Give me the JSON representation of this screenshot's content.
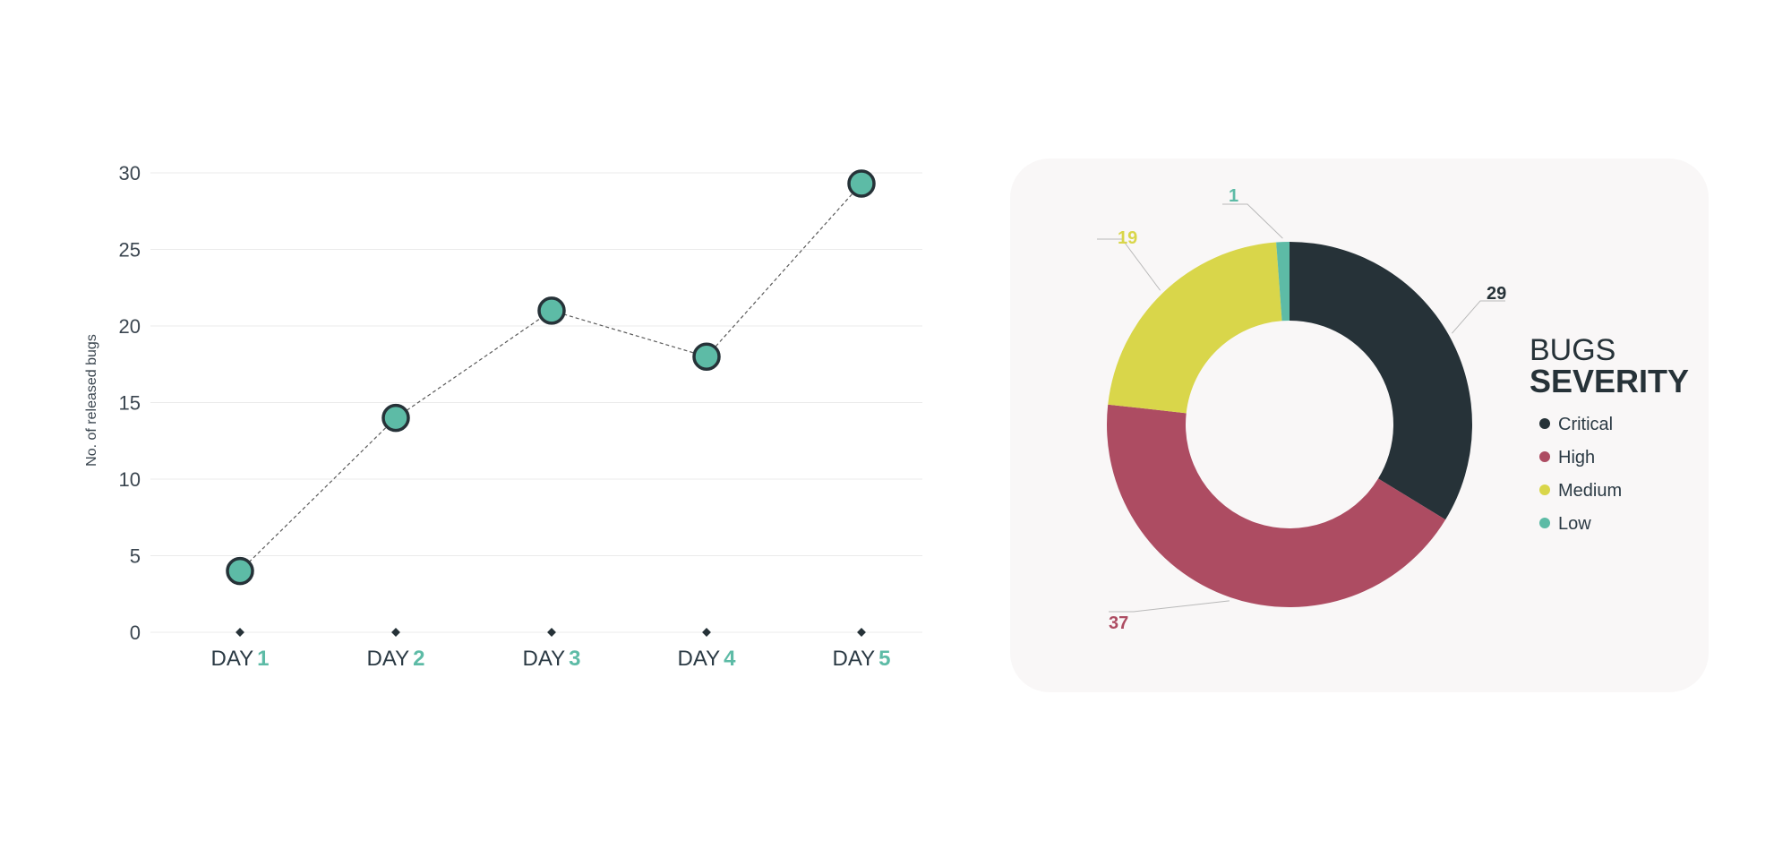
{
  "colors": {
    "accent": "#5dbba6",
    "dark": "#263238",
    "critical": "#263238",
    "high": "#ad4c62",
    "medium": "#d9d64a",
    "low": "#5dbba6",
    "panel": "#f9f7f7",
    "grid": "#ebebeb"
  },
  "chart_data": [
    {
      "type": "line",
      "x": [
        "DAY 1",
        "DAY 2",
        "DAY 3",
        "DAY 4",
        "DAY 5"
      ],
      "x_prefix": [
        "DAY",
        "DAY",
        "DAY",
        "DAY",
        "DAY"
      ],
      "x_number": [
        "1",
        "2",
        "3",
        "4",
        "5"
      ],
      "values": [
        4,
        14,
        21,
        18,
        29.3
      ],
      "ylabel": "No. of released bugs",
      "ylim": [
        0,
        30
      ],
      "yticks": [
        "0",
        "5",
        "10",
        "15",
        "20",
        "25",
        "30"
      ],
      "grid": true
    },
    {
      "type": "pie",
      "title_line1": "BUGS",
      "title_line2": "SEVERITY",
      "legend_position": "right",
      "slices": [
        {
          "name": "Critical",
          "value": 29,
          "label": "29",
          "color": "#263238"
        },
        {
          "name": "High",
          "value": 37,
          "label": "37",
          "color": "#ad4c62"
        },
        {
          "name": "Medium",
          "value": 19,
          "label": "19",
          "color": "#d9d64a"
        },
        {
          "name": "Low",
          "value": 1,
          "label": "1",
          "color": "#5dbba6"
        }
      ]
    }
  ]
}
